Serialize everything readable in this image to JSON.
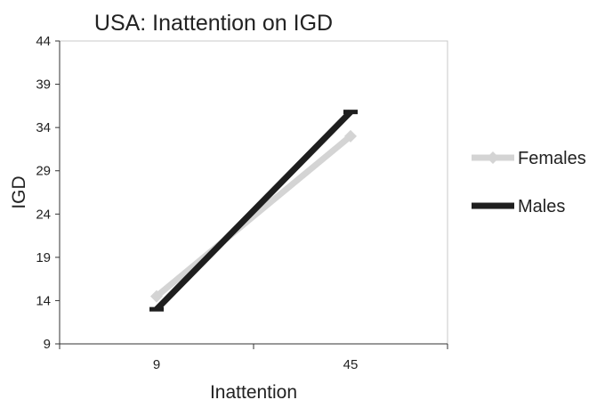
{
  "chart_data": {
    "type": "line",
    "title": "USA: Inattention on IGD",
    "xlabel": "Inattention",
    "ylabel": "IGD",
    "categories": [
      "9",
      "45"
    ],
    "ylim": [
      9,
      44
    ],
    "yticks": [
      9,
      14,
      19,
      24,
      29,
      34,
      39,
      44
    ],
    "grid": false,
    "legend": "right",
    "series": [
      {
        "name": "Females",
        "values": [
          14.5,
          33
        ],
        "color": "#d4d4d4",
        "marker": "diamond"
      },
      {
        "name": "Males",
        "values": [
          13,
          35.8
        ],
        "color": "#1e1e1e",
        "marker": "dash"
      }
    ]
  }
}
